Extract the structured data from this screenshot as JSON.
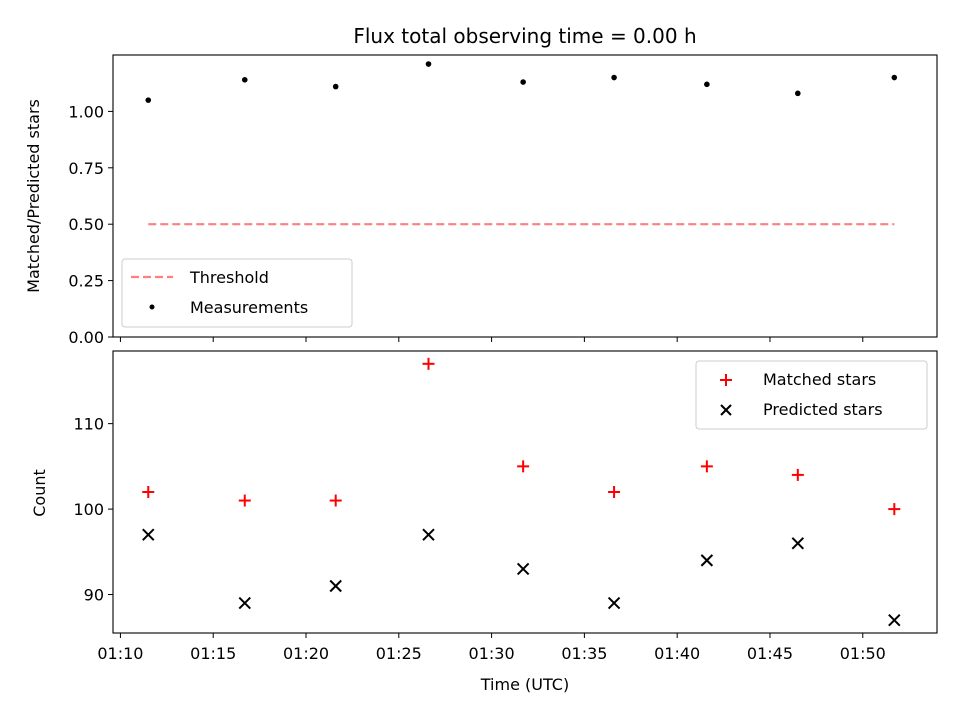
{
  "chart_data": [
    {
      "type": "scatter",
      "title": "Flux total observing time = 0.00 h",
      "xlabel": "",
      "ylabel": "Matched/Predicted stars",
      "ylim": [
        0,
        1.25
      ],
      "xlim_minutes": [
        69.6,
        114.0
      ],
      "yticks": [
        0.0,
        0.25,
        0.5,
        0.75,
        1.0
      ],
      "ytick_labels": [
        "0.00",
        "0.25",
        "0.50",
        "0.75",
        "1.00"
      ],
      "legend_placement": "lower-left",
      "series": [
        {
          "name": "Threshold",
          "kind": "line",
          "color": "#ff7f7f",
          "dash": "dashed",
          "x": [
            71.5,
            111.7
          ],
          "values": [
            0.5,
            0.5
          ]
        },
        {
          "name": "Measurements",
          "kind": "dot",
          "color": "#000000",
          "x": [
            71.5,
            76.7,
            81.6,
            86.6,
            91.7,
            96.6,
            101.6,
            106.5,
            111.7
          ],
          "values": [
            1.05,
            1.14,
            1.11,
            1.21,
            1.13,
            1.15,
            1.12,
            1.08,
            1.15
          ]
        }
      ]
    },
    {
      "type": "scatter",
      "title": "",
      "xlabel": "Time (UTC)",
      "ylabel": "Count",
      "ylim": [
        85.5,
        118.5
      ],
      "xlim_minutes": [
        69.6,
        114.0
      ],
      "yticks": [
        90,
        100,
        110
      ],
      "ytick_labels": [
        "90",
        "100",
        "110"
      ],
      "xticks_minutes": [
        70,
        75,
        80,
        85,
        90,
        95,
        100,
        105,
        110
      ],
      "xtick_labels": [
        "01:10",
        "01:15",
        "01:20",
        "01:25",
        "01:30",
        "01:35",
        "01:40",
        "01:45",
        "01:50"
      ],
      "legend_placement": "upper-right",
      "series": [
        {
          "name": "Matched stars",
          "kind": "plus",
          "color": "#ff0000",
          "x": [
            71.5,
            76.7,
            81.6,
            86.6,
            91.7,
            96.6,
            101.6,
            106.5,
            111.7
          ],
          "values": [
            102,
            101,
            101,
            117,
            105,
            102,
            105,
            104,
            100
          ]
        },
        {
          "name": "Predicted stars",
          "kind": "cross",
          "color": "#000000",
          "x": [
            71.5,
            76.7,
            81.6,
            86.6,
            91.7,
            96.6,
            101.6,
            106.5,
            111.7
          ],
          "values": [
            97,
            89,
            91,
            97,
            93,
            89,
            94,
            96,
            87
          ]
        }
      ]
    }
  ]
}
